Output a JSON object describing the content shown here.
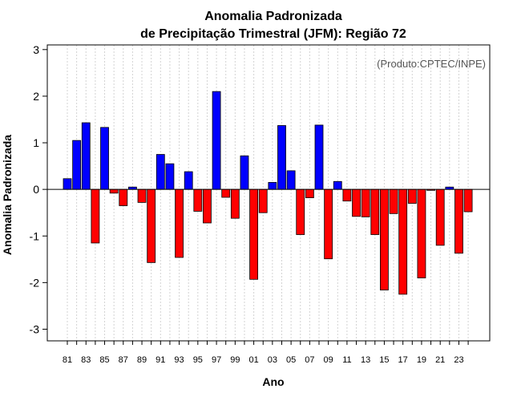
{
  "chart_data": {
    "type": "bar",
    "title_line1": "Anomalia Padronizada",
    "title_line2": "de Precipitação Trimestral (JFM): Região 72",
    "xlabel": "Ano",
    "ylabel": "Anomalia Padronizada",
    "credit": "(Produto:CPTEC/INPE)",
    "ylim": [
      -3.25,
      3.1
    ],
    "yticks": [
      -3,
      -2,
      -1,
      0,
      1,
      2,
      3
    ],
    "ytick_labels": [
      "-3",
      "-2",
      "-1",
      "0",
      "1",
      "2",
      "3"
    ],
    "xtick_labels": [
      "81",
      "83",
      "85",
      "87",
      "89",
      "91",
      "93",
      "95",
      "97",
      "99",
      "01",
      "03",
      "05",
      "07",
      "09",
      "11",
      "13",
      "15",
      "17",
      "19",
      "21",
      "23"
    ],
    "categories": [
      "1981",
      "1982",
      "1983",
      "1984",
      "1985",
      "1986",
      "1987",
      "1988",
      "1989",
      "1990",
      "1991",
      "1992",
      "1993",
      "1994",
      "1995",
      "1996",
      "1997",
      "1998",
      "1999",
      "2000",
      "2001",
      "2002",
      "2003",
      "2004",
      "2005",
      "2006",
      "2007",
      "2008",
      "2009",
      "2010",
      "2011",
      "2012",
      "2013",
      "2014",
      "2015",
      "2016",
      "2017",
      "2018",
      "2019",
      "2020",
      "2021",
      "2022",
      "2023",
      "2024"
    ],
    "values": [
      0.23,
      1.05,
      1.43,
      -1.15,
      1.33,
      -0.08,
      -0.35,
      0.05,
      -0.28,
      -1.57,
      0.75,
      0.55,
      -1.46,
      0.38,
      -0.47,
      -0.72,
      2.1,
      -0.17,
      -0.62,
      0.72,
      -1.93,
      -0.5,
      0.15,
      1.37,
      0.4,
      -0.97,
      -0.18,
      1.38,
      -1.49,
      0.17,
      -0.25,
      -0.58,
      -0.59,
      -0.97,
      -2.16,
      -0.52,
      -2.25,
      -0.3,
      -1.9,
      -0.02,
      -1.2,
      0.05,
      -1.37,
      -0.48
    ],
    "colors": {
      "positive": "#0000ff",
      "negative": "#ff0000",
      "edge": "#000000",
      "grid": "#d3d3d3",
      "zero_line": "#000000"
    },
    "grid": true
  }
}
